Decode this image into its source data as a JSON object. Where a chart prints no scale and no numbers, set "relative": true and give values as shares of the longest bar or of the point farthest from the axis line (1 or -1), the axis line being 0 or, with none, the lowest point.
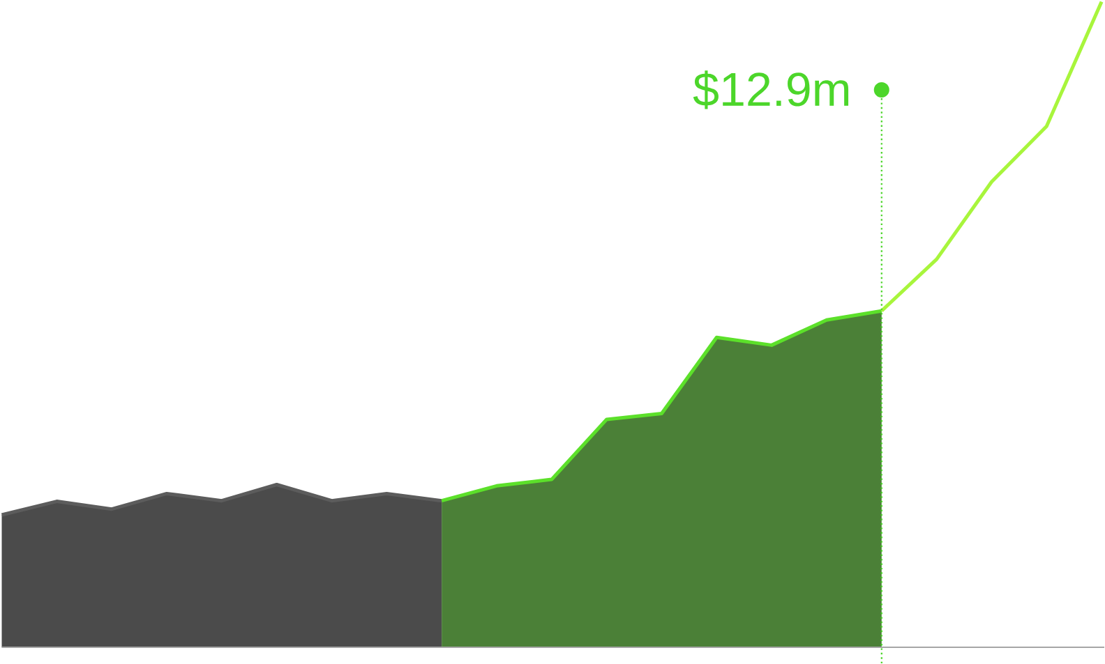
{
  "chart_data": {
    "type": "area",
    "relative": true,
    "categories": [
      null,
      null,
      null,
      null,
      null,
      null,
      null,
      null,
      null,
      null,
      null,
      null,
      null,
      null,
      null,
      null,
      null,
      null,
      null,
      null,
      null
    ],
    "series": [
      {
        "color": "#5c5c5c",
        "values": [
          0.205,
          0.226,
          0.214,
          0.238,
          0.227,
          0.252,
          0.227,
          0.238,
          0.227,
          null,
          null,
          null,
          null,
          null,
          null,
          null,
          null,
          null,
          null,
          null,
          null
        ]
      },
      {
        "color": "#5ce02a",
        "values": [
          null,
          null,
          null,
          null,
          null,
          null,
          null,
          null,
          0.227,
          0.25,
          0.26,
          0.353,
          0.362,
          0.48,
          0.468,
          0.507,
          0.521,
          null,
          null,
          null,
          null
        ]
      },
      {
        "type": "line",
        "color": "#a8f53c",
        "values": [
          null,
          null,
          null,
          null,
          null,
          null,
          null,
          null,
          null,
          null,
          null,
          null,
          null,
          null,
          null,
          null,
          0.521,
          0.601,
          0.721,
          0.807,
          1
        ]
      }
    ],
    "annotations": [
      "$12.9m"
    ]
  }
}
